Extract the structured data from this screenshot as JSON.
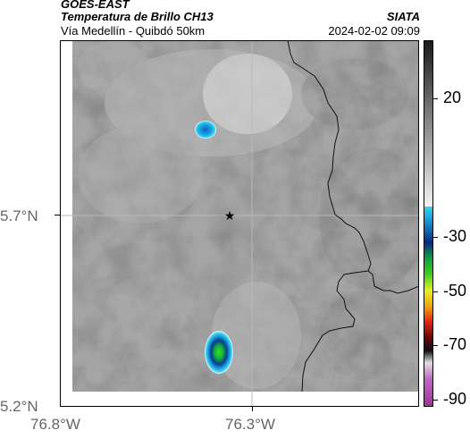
{
  "header": {
    "satellite": "GOES-EAST",
    "product": "Temperatura de Brillo CH13",
    "route": "Vía Medellín - Quibdó 50km",
    "agency": "SIATA",
    "datetime": "2024-02-02 09:09"
  },
  "map": {
    "lat_ticks": [
      "5.7°N",
      "5.2°N"
    ],
    "lon_ticks": [
      "76.8°W",
      "76.3°W"
    ],
    "marker_icon": "star-icon"
  },
  "colorbar": {
    "ticks": [
      "20",
      "-30",
      "-50",
      "-70",
      "-90"
    ]
  }
}
